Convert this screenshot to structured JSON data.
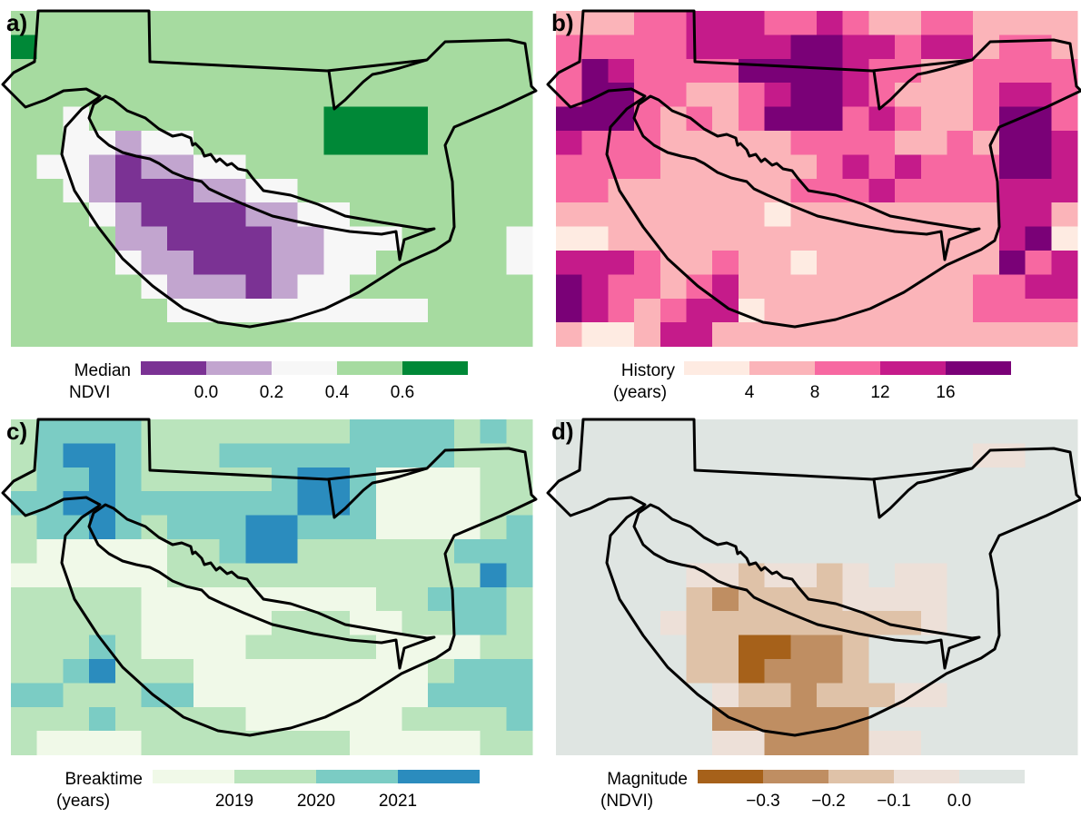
{
  "chart_data": [
    {
      "type": "heatmap",
      "panel_label": "a)",
      "legend": {
        "title_lines": [
          "Median",
          "NDVI"
        ],
        "tick_labels": [
          "0.0",
          "0.2",
          "0.4",
          "0.6"
        ]
      },
      "colors": [
        "#7b3294",
        "#c2a5cf",
        "#f7f7f7",
        "#a6dba0",
        "#008837"
      ],
      "grid": [
        "33333333333333333333",
        "43333333333333333333",
        "33333333333333333333",
        "33333333333333333333",
        "33233333333344443333",
        "33221223333344443333",
        "32210112233333333333",
        "33210001122333333333",
        "33321000011223333333",
        "33331100001122233332",
        "33332110001122333332",
        "33333211101223333333",
        "33333322222222223333",
        "33333333333333333333"
      ]
    },
    {
      "type": "heatmap",
      "panel_label": "b)",
      "legend": {
        "title_lines": [
          "History",
          "(years)"
        ],
        "tick_labels": [
          "4",
          "8",
          "12",
          "16"
        ]
      },
      "colors": [
        "#feebe2",
        "#fbb4b9",
        "#f768a1",
        "#c51b8a",
        "#7a0177"
      ],
      "grid": [
        "11122333223211221111",
        "22222333344332331221",
        "24322224444322112222",
        "24422112344321112332",
        "44421212444232112442",
        "32221111122221121443",
        "22221111112323222443",
        "22111111122232222333",
        "11111111011111111331",
        "00111111111111111340",
        "33321121101111111423",
        "43221231111111112233",
        "43212330111111112222",
        "10013311111111111111"
      ]
    },
    {
      "type": "heatmap",
      "panel_label": "c)",
      "legend": {
        "title_lines": [
          "Breaktime",
          "(years)"
        ],
        "tick_labels": [
          "2019",
          "2020",
          "2021"
        ]
      },
      "colors": [
        "#f0f9e8",
        "#bae4bc",
        "#7bccc4",
        "#2b8cbe"
      ],
      "grid": [
        "12222111111112222121",
        "12332111222222222111",
        "12232111112332000011",
        "22332222222332000011",
        "12232122233222000012",
        "10000011233111111222",
        "00000011111111111132",
        "11111000000000112221",
        "11111000001110011221",
        "11121000011111000011",
        "11231110000000001222",
        "22111220000000002222",
        "11121111100000011112",
        "10000111111110000011"
      ]
    },
    {
      "type": "heatmap",
      "panel_label": "d)",
      "legend": {
        "title_lines": [
          "Magnitude",
          "(NDVI)"
        ],
        "tick_labels": [
          "−0.3",
          "−0.2",
          "−0.1",
          "0.0"
        ]
      },
      "colors": [
        "#a6611a",
        "#bf8e62",
        "#dfc2a8",
        "#ede0d8",
        "#dfe5e2"
      ],
      "grid": [
        "44444444444444444444",
        "44444444444444443344",
        "44444444444444444444",
        "44444444444444444444",
        "44444444444444444444",
        "44444444444444444444",
        "44444332332343344444",
        "44444212222333344444",
        "44443222222222344444",
        "44444220011244444444",
        "44444220111244444444",
        "44444432212223344444",
        "44444411111144444444",
        "44444433111133444444"
      ]
    }
  ]
}
